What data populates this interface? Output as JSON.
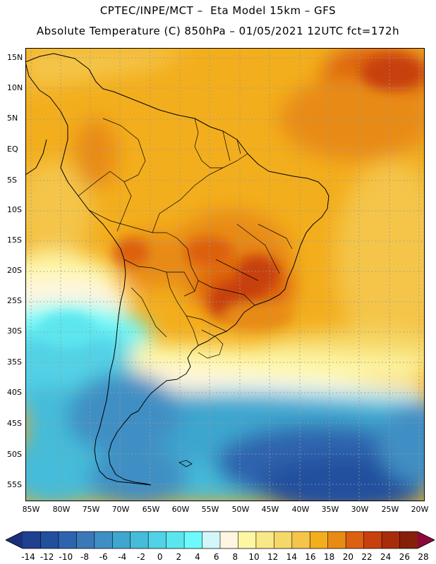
{
  "title_line1": "CPTEC/INPE/MCT –  Eta Model 15km – GFS",
  "title_line2": "Absolute Temperature (C) 850hPa – 01/05/2021 12UTC fct=172h",
  "lat_labels": [
    "15N",
    "10N",
    "5N",
    "EQ",
    "5S",
    "10S",
    "15S",
    "20S",
    "25S",
    "30S",
    "35S",
    "40S",
    "45S",
    "50S",
    "55S"
  ],
  "lon_labels": [
    "85W",
    "80W",
    "75W",
    "70W",
    "65W",
    "60W",
    "55W",
    "50W",
    "45W",
    "40W",
    "35W",
    "30W",
    "25W",
    "20W"
  ],
  "colorbar_labels": [
    "-14",
    "-12",
    "-10",
    "-8",
    "-6",
    "-4",
    "-2",
    "0",
    "2",
    "4",
    "6",
    "8",
    "10",
    "12",
    "14",
    "16",
    "18",
    "20",
    "22",
    "24",
    "26",
    "28"
  ],
  "colorbar_colors": [
    "#1f3f8f",
    "#214f9e",
    "#2e63ad",
    "#3a78b9",
    "#3f8fc4",
    "#3ea6cf",
    "#45bcd9",
    "#52d2e6",
    "#5be6ee",
    "#6efafa",
    "#d2f6fa",
    "#fff5e0",
    "#fdf7a4",
    "#f9e887",
    "#f6d868",
    "#f4c54a",
    "#f3ae1d",
    "#e88b15",
    "#dd6011",
    "#c7400e",
    "#a82c0b",
    "#86200a"
  ],
  "colorbar_under": "#1a2f7a",
  "colorbar_over": "#8c0a3a"
}
